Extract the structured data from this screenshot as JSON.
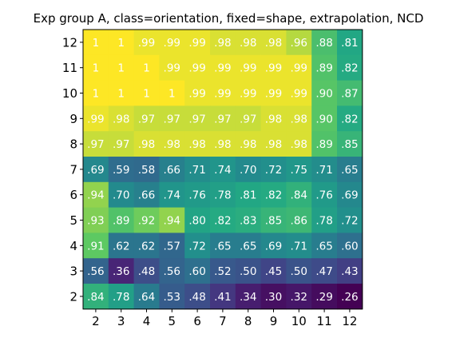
{
  "chart_data": {
    "type": "heatmap",
    "title": "Exp group A, class=orientation, fixed=shape, extrapolation, NCD",
    "xlabel": "",
    "ylabel": "",
    "x_categories": [
      "2",
      "3",
      "4",
      "5",
      "6",
      "7",
      "8",
      "9",
      "10",
      "11",
      "12"
    ],
    "y_categories": [
      "12",
      "11",
      "10",
      "9",
      "8",
      "7",
      "6",
      "5",
      "4",
      "3",
      "2"
    ],
    "colormap": "viridis",
    "value_range": [
      0.26,
      1.0
    ],
    "grid": false,
    "colorbar": false,
    "values": [
      [
        1.0,
        1.0,
        0.99,
        0.99,
        0.99,
        0.98,
        0.98,
        0.98,
        0.96,
        0.88,
        0.81
      ],
      [
        1.0,
        1.0,
        1.0,
        0.99,
        0.99,
        0.99,
        0.99,
        0.99,
        0.99,
        0.89,
        0.82
      ],
      [
        1.0,
        1.0,
        1.0,
        1.0,
        0.99,
        0.99,
        0.99,
        0.99,
        0.99,
        0.9,
        0.87
      ],
      [
        0.99,
        0.98,
        0.97,
        0.97,
        0.97,
        0.97,
        0.97,
        0.98,
        0.98,
        0.9,
        0.82
      ],
      [
        0.97,
        0.97,
        0.98,
        0.98,
        0.98,
        0.98,
        0.98,
        0.98,
        0.98,
        0.89,
        0.85
      ],
      [
        0.69,
        0.59,
        0.58,
        0.66,
        0.71,
        0.74,
        0.7,
        0.72,
        0.75,
        0.71,
        0.65
      ],
      [
        0.94,
        0.7,
        0.66,
        0.74,
        0.76,
        0.78,
        0.81,
        0.82,
        0.84,
        0.76,
        0.69
      ],
      [
        0.93,
        0.89,
        0.92,
        0.94,
        0.8,
        0.82,
        0.83,
        0.85,
        0.86,
        0.78,
        0.72
      ],
      [
        0.91,
        0.62,
        0.62,
        0.57,
        0.72,
        0.65,
        0.65,
        0.69,
        0.71,
        0.65,
        0.6
      ],
      [
        0.56,
        0.36,
        0.48,
        0.56,
        0.6,
        0.52,
        0.5,
        0.45,
        0.5,
        0.47,
        0.43
      ],
      [
        0.84,
        0.78,
        0.64,
        0.53,
        0.48,
        0.41,
        0.34,
        0.3,
        0.32,
        0.29,
        0.26
      ]
    ],
    "cell_labels": [
      [
        "1",
        "1",
        ".99",
        ".99",
        ".99",
        ".98",
        ".98",
        ".98",
        ".96",
        ".88",
        ".81"
      ],
      [
        "1",
        "1",
        "1",
        ".99",
        ".99",
        ".99",
        ".99",
        ".99",
        ".99",
        ".89",
        ".82"
      ],
      [
        "1",
        "1",
        "1",
        "1",
        ".99",
        ".99",
        ".99",
        ".99",
        ".99",
        ".90",
        ".87"
      ],
      [
        ".99",
        ".98",
        ".97",
        ".97",
        ".97",
        ".97",
        ".97",
        ".98",
        ".98",
        ".90",
        ".82"
      ],
      [
        ".97",
        ".97",
        ".98",
        ".98",
        ".98",
        ".98",
        ".98",
        ".98",
        ".98",
        ".89",
        ".85"
      ],
      [
        ".69",
        ".59",
        ".58",
        ".66",
        ".71",
        ".74",
        ".70",
        ".72",
        ".75",
        ".71",
        ".65"
      ],
      [
        ".94",
        ".70",
        ".66",
        ".74",
        ".76",
        ".78",
        ".81",
        ".82",
        ".84",
        ".76",
        ".69"
      ],
      [
        ".93",
        ".89",
        ".92",
        ".94",
        ".80",
        ".82",
        ".83",
        ".85",
        ".86",
        ".78",
        ".72"
      ],
      [
        ".91",
        ".62",
        ".62",
        ".57",
        ".72",
        ".65",
        ".65",
        ".69",
        ".71",
        ".65",
        ".60"
      ],
      [
        ".56",
        ".36",
        ".48",
        ".56",
        ".60",
        ".52",
        ".50",
        ".45",
        ".50",
        ".47",
        ".43"
      ],
      [
        ".84",
        ".78",
        ".64",
        ".53",
        ".48",
        ".41",
        ".34",
        ".30",
        ".32",
        ".29",
        ".26"
      ]
    ]
  }
}
